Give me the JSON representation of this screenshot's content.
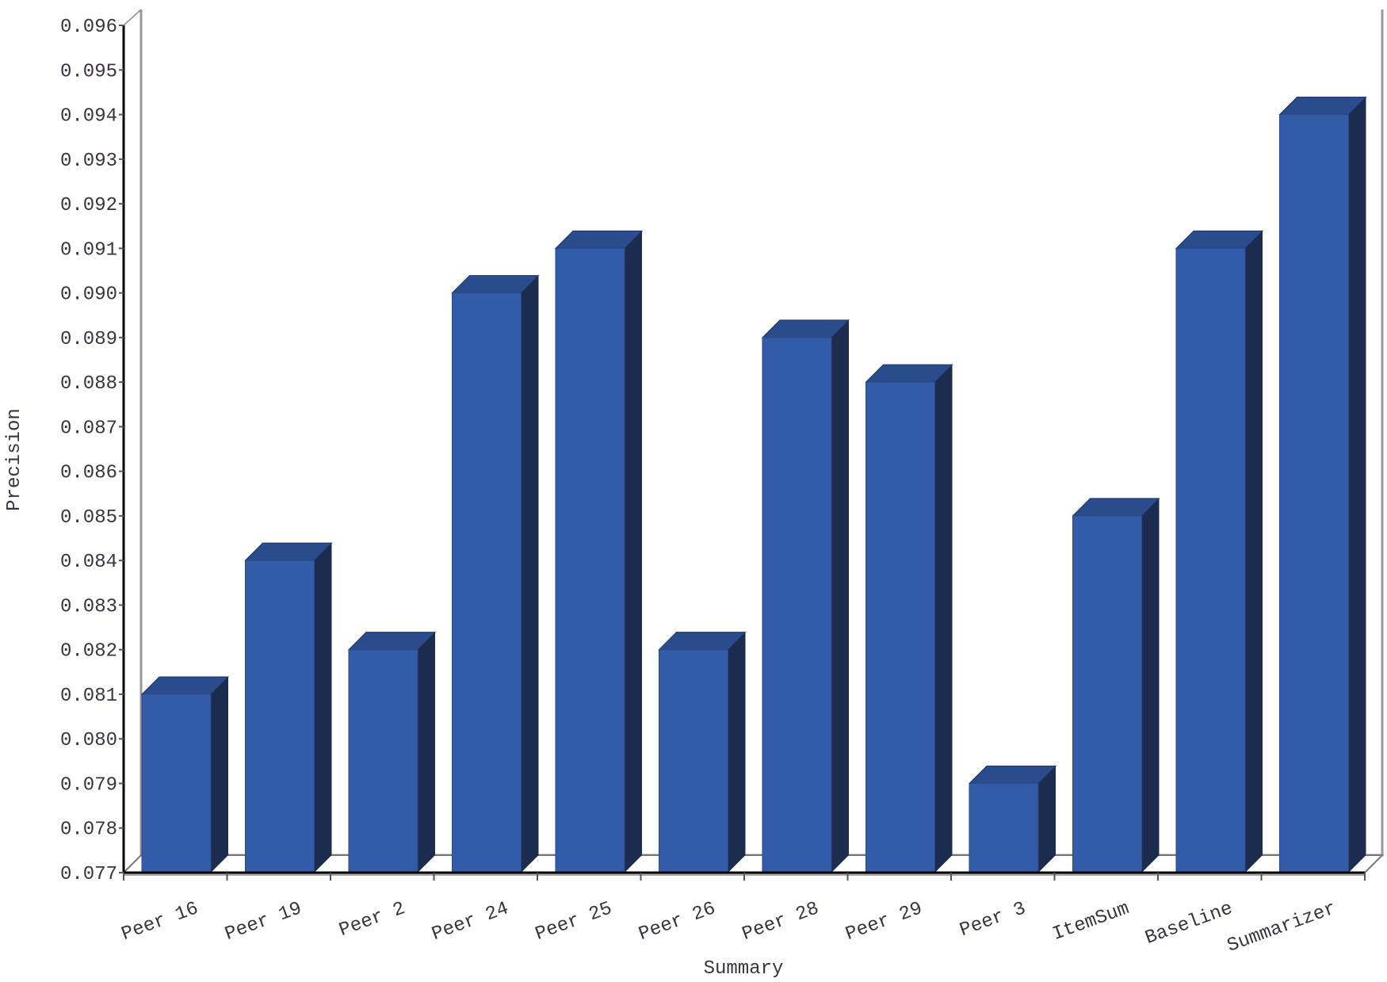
{
  "chart_data": {
    "type": "bar",
    "style": "3d",
    "title": "",
    "xlabel": "Summary",
    "ylabel": "Precision",
    "categories": [
      "Peer 16",
      "Peer 19",
      "Peer 2",
      "Peer 24",
      "Peer 25",
      "Peer 26",
      "Peer 28",
      "Peer 29",
      "Peer 3",
      "ItemSum",
      "Baseline",
      "Summarizer"
    ],
    "values": [
      0.081,
      0.084,
      0.082,
      0.09,
      0.091,
      0.082,
      0.089,
      0.088,
      0.079,
      0.085,
      0.091,
      0.094
    ],
    "ylim": [
      0.077,
      0.096
    ],
    "yticks": [
      "0.077",
      "0.078",
      "0.079",
      "0.080",
      "0.081",
      "0.082",
      "0.083",
      "0.084",
      "0.085",
      "0.086",
      "0.087",
      "0.088",
      "0.089",
      "0.090",
      "0.091",
      "0.092",
      "0.093",
      "0.094",
      "0.095",
      "0.096"
    ],
    "grid": false,
    "legend": "none",
    "colors": {
      "front": "#335ca8",
      "side": "#1c2c4f",
      "top": "#2a4b8c"
    }
  }
}
